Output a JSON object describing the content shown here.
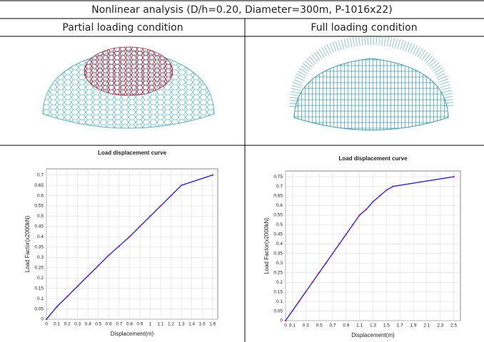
{
  "title": "Nonlinear analysis (D/h=0.20, Diameter=300m, P-1016x22)",
  "columns": [
    "Partial loading condition",
    "Full loading condition"
  ],
  "chart_data": [
    {
      "type": "line",
      "title": "Load displacement curve",
      "x_label": "Displacement(m)",
      "y_label": "Load Factor(x2000kN)",
      "x": [
        0,
        0.1,
        0.2,
        0.3,
        0.4,
        0.5,
        0.6,
        0.7,
        0.8,
        0.9,
        1.0,
        1.1,
        1.2,
        1.3,
        1.6
      ],
      "values": [
        0,
        0.06,
        0.11,
        0.16,
        0.21,
        0.26,
        0.31,
        0.355,
        0.4,
        0.45,
        0.5,
        0.55,
        0.6,
        0.65,
        0.7
      ],
      "color": "#2424ff",
      "marker_color": "#e0207a",
      "xlim": [
        0,
        1.65
      ],
      "ylim": [
        0,
        0.73
      ],
      "xticks": [
        0,
        0.1,
        0.2,
        0.3,
        0.4,
        0.5,
        0.6,
        0.7,
        0.8,
        0.9,
        1,
        1.1,
        1.2,
        1.3,
        1.4,
        1.5,
        1.6
      ],
      "yticks": [
        0,
        0.05,
        0.1,
        0.15,
        0.2,
        0.25,
        0.3,
        0.35,
        0.4,
        0.45,
        0.5,
        0.55,
        0.6,
        0.65,
        0.7
      ],
      "grid": true
    },
    {
      "type": "line",
      "title": "Load displacement curve",
      "x_label": "Displacement(m)",
      "y_label": "Load Factor(x2000kN)",
      "x": [
        0,
        0.1,
        0.2,
        0.3,
        0.4,
        0.5,
        0.6,
        0.7,
        0.8,
        0.9,
        1.0,
        1.1,
        1.2,
        1.3,
        1.4,
        1.5,
        1.6,
        2.5
      ],
      "values": [
        0,
        0.05,
        0.1,
        0.15,
        0.2,
        0.25,
        0.3,
        0.35,
        0.4,
        0.45,
        0.5,
        0.55,
        0.58,
        0.62,
        0.65,
        0.68,
        0.7,
        0.75
      ],
      "color": "#2424ff",
      "marker_color": "#e0207a",
      "xlim": [
        0,
        2.6
      ],
      "ylim": [
        0,
        0.78
      ],
      "xticks": [
        0,
        0.1,
        0.3,
        0.5,
        0.7,
        0.9,
        1.1,
        1.3,
        1.5,
        1.7,
        1.9,
        2.1,
        2.3,
        2.5
      ],
      "yticks": [
        0,
        0.05,
        0.1,
        0.15,
        0.2,
        0.25,
        0.3,
        0.35,
        0.4,
        0.45,
        0.5,
        0.55,
        0.6,
        0.65,
        0.7,
        0.75
      ],
      "grid": true
    }
  ]
}
